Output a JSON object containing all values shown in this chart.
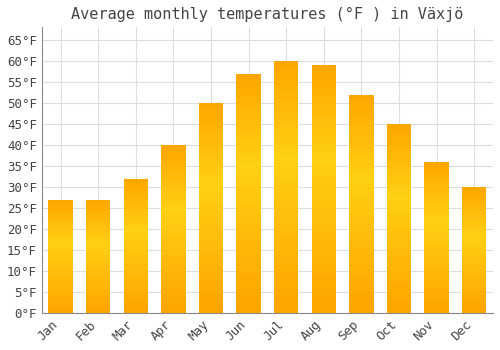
{
  "title": "Average monthly temperatures (°F ) in Växjö",
  "months": [
    "Jan",
    "Feb",
    "Mar",
    "Apr",
    "May",
    "Jun",
    "Jul",
    "Aug",
    "Sep",
    "Oct",
    "Nov",
    "Dec"
  ],
  "values": [
    27,
    27,
    32,
    40,
    50,
    57,
    60,
    59,
    52,
    45,
    36,
    30
  ],
  "bar_color": "#FFA500",
  "bar_color_top": "#FFD050",
  "background_color": "#FFFFFF",
  "grid_color": "#DDDDDD",
  "ylim": [
    0,
    68
  ],
  "yticks": [
    0,
    5,
    10,
    15,
    20,
    25,
    30,
    35,
    40,
    45,
    50,
    55,
    60,
    65
  ],
  "title_fontsize": 11,
  "tick_fontsize": 9,
  "text_color": "#444444"
}
